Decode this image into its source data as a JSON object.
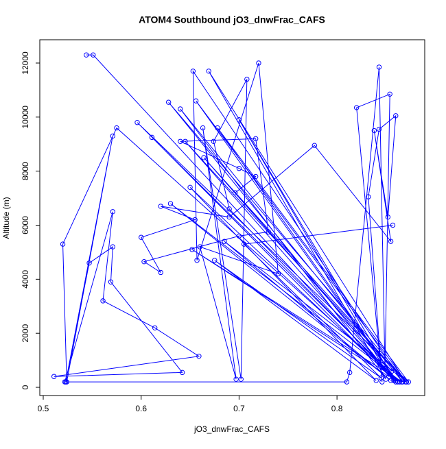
{
  "chart_data": {
    "type": "line",
    "title": "ATOM4 Southbound jO3_dnwFrac_CAFS",
    "xlabel": "jO3_dnwFrac_CAFS",
    "ylabel": "Altitude (m)",
    "color": "#0000ff",
    "xlim": [
      0.4965,
      0.8896
    ],
    "ylim": [
      -304,
      12862
    ],
    "xticks": [
      0.5,
      0.6,
      0.7,
      0.8
    ],
    "yticks": [
      0,
      2000,
      4000,
      6000,
      8000,
      10000,
      12000
    ],
    "x": [
      0.544,
      0.551,
      0.86,
      0.628,
      0.871,
      0.656,
      0.86,
      0.645,
      0.87,
      0.669,
      0.85,
      0.64,
      0.867,
      0.653,
      0.657,
      0.72,
      0.74,
      0.66,
      0.697,
      0.663,
      0.702,
      0.708,
      0.674,
      0.69,
      0.862,
      0.678,
      0.873,
      0.596,
      0.858,
      0.611,
      0.864,
      0.575,
      0.52,
      0.524,
      0.571,
      0.523,
      0.547,
      0.571,
      0.569,
      0.642,
      0.511,
      0.659,
      0.614,
      0.561,
      0.571,
      0.522,
      0.81,
      0.813,
      0.843,
      0.849,
      0.854,
      0.82,
      0.846,
      0.832,
      0.843,
      0.86,
      0.852,
      0.838,
      0.855,
      0.777,
      0.69,
      0.62,
      0.655,
      0.6,
      0.62,
      0.603,
      0.7,
      0.73,
      0.717,
      0.64,
      0.7,
      0.717,
      0.696,
      0.856,
      0.664,
      0.868,
      0.685,
      0.855,
      0.63,
      0.866,
      0.652,
      0.853,
      0.7,
      0.858,
      0.65,
      0.84,
      0.675,
      0.845,
      0.705,
      0.857
    ],
    "values": [
      12300,
      12300,
      200,
      10550,
      200,
      10600,
      250,
      9100,
      200,
      11700,
      300,
      10300,
      200,
      11700,
      4700,
      12000,
      4200,
      5200,
      300,
      9600,
      300,
      11400,
      9100,
      6600,
      200,
      9600,
      200,
      9800,
      250,
      9250,
      200,
      9600,
      5300,
      200,
      9300,
      200,
      4600,
      5200,
      3900,
      550,
      400,
      1150,
      2200,
      3200,
      6500,
      200,
      200,
      550,
      11850,
      700,
      10850,
      10350,
      200,
      7050,
      9550,
      10050,
      6300,
      9500,
      5400,
      8950,
      6300,
      6700,
      6200,
      5550,
      4250,
      4650,
      5600,
      5750,
      9200,
      9100,
      8100,
      7800,
      7200,
      600,
      8500,
      300,
      5400,
      250,
      6800,
      200,
      5100,
      400,
      9900,
      300,
      7400,
      250,
      4700,
      350,
      5300,
      6000
    ]
  }
}
